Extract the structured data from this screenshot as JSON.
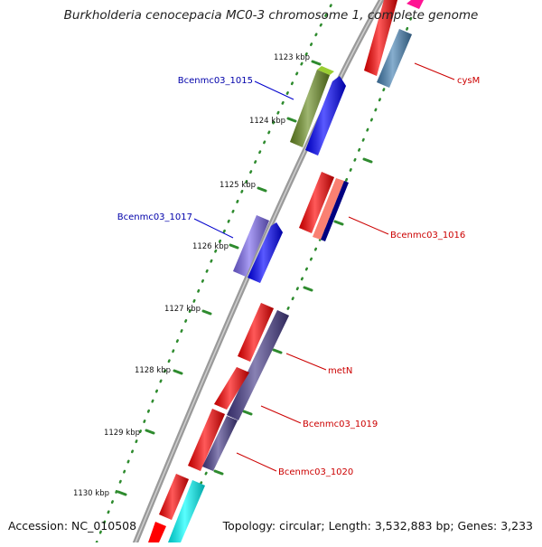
{
  "title": "Burkholderia cenocepacia MC0-3 chromosome 1, complete genome",
  "footer": {
    "accession": "Accession: NC_010508",
    "topology": "Topology: circular; Length: 3,532,883 bp; Genes: 3,233"
  },
  "kbp_labels": [
    "1123 kbp",
    "1124 kbp",
    "1125 kbp",
    "1126 kbp",
    "1127 kbp",
    "1128 kbp",
    "1129 kbp",
    "1130 kbp"
  ],
  "gene_labels": {
    "Bcenmc03_1015": "Bcenmc03_1015",
    "Bcenmc03_1017": "Bcenmc03_1017",
    "cysM": "cysM",
    "Bcenmc03_1016": "Bcenmc03_1016",
    "metN": "metN",
    "Bcenmc03_1019": "Bcenmc03_1019",
    "Bcenmc03_1020": "Bcenmc03_1020"
  },
  "colors": {
    "backbone": "#8a8a8a",
    "tick": "#2e8b2e",
    "label_blue": "#0000aa",
    "label_red": "#cc0000",
    "red_feature": "#ff0000",
    "blue_feature": "#0000ff",
    "olive_feature": "#6b8e23",
    "slate_feature": "#6a5acd",
    "steel_feature": "#4682b4",
    "salmon_feature": "#fa8072",
    "navy_feature": "#000080",
    "darkslate_feature": "#483d8b",
    "cyan_feature": "#00ffff",
    "magenta_feature": "#ff00ff"
  }
}
